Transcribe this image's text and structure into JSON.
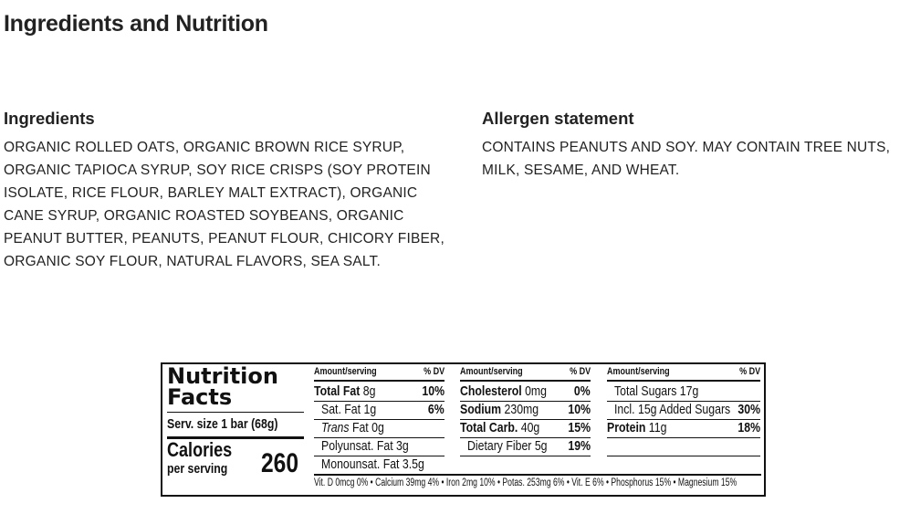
{
  "title": "Ingredients and Nutrition",
  "ingredients": {
    "heading": "Ingredients",
    "text": "ORGANIC ROLLED OATS, ORGANIC BROWN RICE SYRUP, ORGANIC TAPIOCA SYRUP, SOY RICE CRISPS (SOY PROTEIN ISOLATE, RICE FLOUR, BARLEY MALT EXTRACT), ORGANIC CANE SYRUP, ORGANIC ROASTED SOYBEANS, ORGANIC PEANUT BUTTER, PEANUTS, PEANUT FLOUR, CHICORY FIBER, ORGANIC SOY FLOUR, NATURAL FLAVORS, SEA SALT."
  },
  "allergen": {
    "heading": "Allergen statement",
    "text": "CONTAINS PEANUTS AND SOY. MAY CONTAIN TREE NUTS, MILK, SESAME, AND WHEAT."
  },
  "nutrition": {
    "title_line1": "Nutrition",
    "title_line2": "Facts",
    "serving": "Serv. size 1 bar (68g)",
    "calories_label": "Calories",
    "per_serving": "per serving",
    "calories": "260",
    "columns": [
      {
        "amount_header": "Amount/serving",
        "dv_header": "% DV",
        "rows": [
          {
            "bold": "Total Fat",
            "value": " 8g",
            "dv": "10%",
            "indent": false
          },
          {
            "bold": "",
            "value": "Sat. Fat 1g",
            "dv": "6%",
            "indent": true
          },
          {
            "bold": "",
            "italic": "Trans",
            "value": " Fat 0g",
            "dv": "",
            "indent": true
          },
          {
            "bold": "",
            "value": "Polyunsat. Fat 3g",
            "dv": "",
            "indent": true
          },
          {
            "bold": "",
            "value": "Monounsat. Fat 3.5g",
            "dv": "",
            "indent": true
          }
        ]
      },
      {
        "amount_header": "Amount/serving",
        "dv_header": "% DV",
        "rows": [
          {
            "bold": "Cholesterol",
            "value": " 0mg",
            "dv": "0%",
            "indent": false
          },
          {
            "bold": "Sodium",
            "value": " 230mg",
            "dv": "10%",
            "indent": false
          },
          {
            "bold": "Total Carb.",
            "value": " 40g",
            "dv": "15%",
            "indent": false
          },
          {
            "bold": "",
            "value": "Dietary Fiber 5g",
            "dv": "19%",
            "indent": true
          }
        ]
      },
      {
        "amount_header": "Amount/serving",
        "dv_header": "% DV",
        "rows": [
          {
            "bold": "",
            "value": "Total Sugars 17g",
            "dv": "",
            "indent": true
          },
          {
            "bold": "",
            "value": "Incl. 15g Added Sugars",
            "dv": "30%",
            "indent": true,
            "wide": true
          },
          {
            "bold": "Protein",
            "value": " 11g",
            "dv": "18%",
            "indent": false
          }
        ]
      }
    ],
    "footer": "Vit. D 0mcg 0% • Calcium 39mg 4% • Iron 2mg 10% • Potas. 253mg 6% • Vit. E 6% • Phosphorus 15% • Magnesium 15%"
  }
}
